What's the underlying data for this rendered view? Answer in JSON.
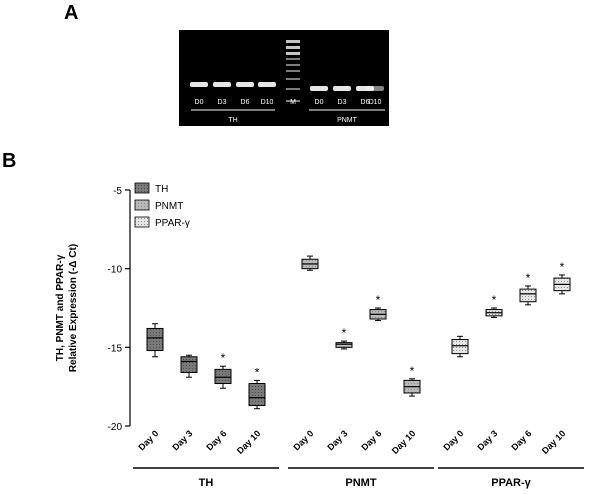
{
  "panel_a_label": "A",
  "panel_b_label": "B",
  "gel": {
    "lanes": [
      "D0",
      "D3",
      "D6",
      "D10",
      "M",
      "D0",
      "D3",
      "D6",
      "D10"
    ],
    "groups": [
      "TH",
      "PNMT"
    ]
  },
  "chart_data": {
    "type": "box",
    "ylabel_line1": "TH, PNMT and PPAR-γ",
    "ylabel_line2": "Relative Expression (-Δ Ct)",
    "ylim": [
      -20,
      -5
    ],
    "yticks": [
      "-5",
      "-10",
      "-15",
      "-20"
    ],
    "groups": [
      "TH",
      "PNMT",
      "PPAR-γ"
    ],
    "categories": [
      "Day 0",
      "Day 3",
      "Day 6",
      "Day 10"
    ],
    "legend": [
      "TH",
      "PNMT",
      "PPAR-γ"
    ],
    "significance_marker": "*",
    "colors": {
      "TH": "#7a7a7a",
      "PNMT": "#b9b9b9",
      "PPAR-γ": "#e6e6e6"
    },
    "series": [
      {
        "name": "TH",
        "boxes": [
          {
            "x": "Day 0",
            "min": -15.6,
            "q1": -15.2,
            "median": -14.4,
            "q3": -13.8,
            "max": -13.5,
            "sig": false
          },
          {
            "x": "Day 3",
            "min": -16.9,
            "q1": -16.6,
            "median": -15.9,
            "q3": -15.6,
            "max": -15.5,
            "sig": false
          },
          {
            "x": "Day 6",
            "min": -17.6,
            "q1": -17.3,
            "median": -16.9,
            "q3": -16.4,
            "max": -16.2,
            "sig": true
          },
          {
            "x": "Day 10",
            "min": -18.9,
            "q1": -18.7,
            "median": -18.2,
            "q3": -17.3,
            "max": -17.1,
            "sig": true
          }
        ]
      },
      {
        "name": "PNMT",
        "boxes": [
          {
            "x": "Day 0",
            "min": -10.1,
            "q1": -10.0,
            "median": -9.7,
            "q3": -9.4,
            "max": -9.2,
            "sig": false
          },
          {
            "x": "Day 3",
            "min": -15.1,
            "q1": -15.0,
            "median": -14.8,
            "q3": -14.7,
            "max": -14.6,
            "sig": true
          },
          {
            "x": "Day 6",
            "min": -13.3,
            "q1": -13.2,
            "median": -12.9,
            "q3": -12.6,
            "max": -12.5,
            "sig": true
          },
          {
            "x": "Day 10",
            "min": -18.1,
            "q1": -17.9,
            "median": -17.5,
            "q3": -17.1,
            "max": -17.0,
            "sig": true
          }
        ]
      },
      {
        "name": "PPAR-γ",
        "boxes": [
          {
            "x": "Day 0",
            "min": -15.6,
            "q1": -15.4,
            "median": -14.9,
            "q3": -14.5,
            "max": -14.3,
            "sig": false
          },
          {
            "x": "Day 3",
            "min": -13.1,
            "q1": -13.0,
            "median": -12.8,
            "q3": -12.6,
            "max": -12.5,
            "sig": true
          },
          {
            "x": "Day 6",
            "min": -12.3,
            "q1": -12.1,
            "median": -11.6,
            "q3": -11.3,
            "max": -11.1,
            "sig": true
          },
          {
            "x": "Day 10",
            "min": -11.6,
            "q1": -11.4,
            "median": -11.0,
            "q3": -10.6,
            "max": -10.4,
            "sig": true
          }
        ]
      }
    ]
  }
}
